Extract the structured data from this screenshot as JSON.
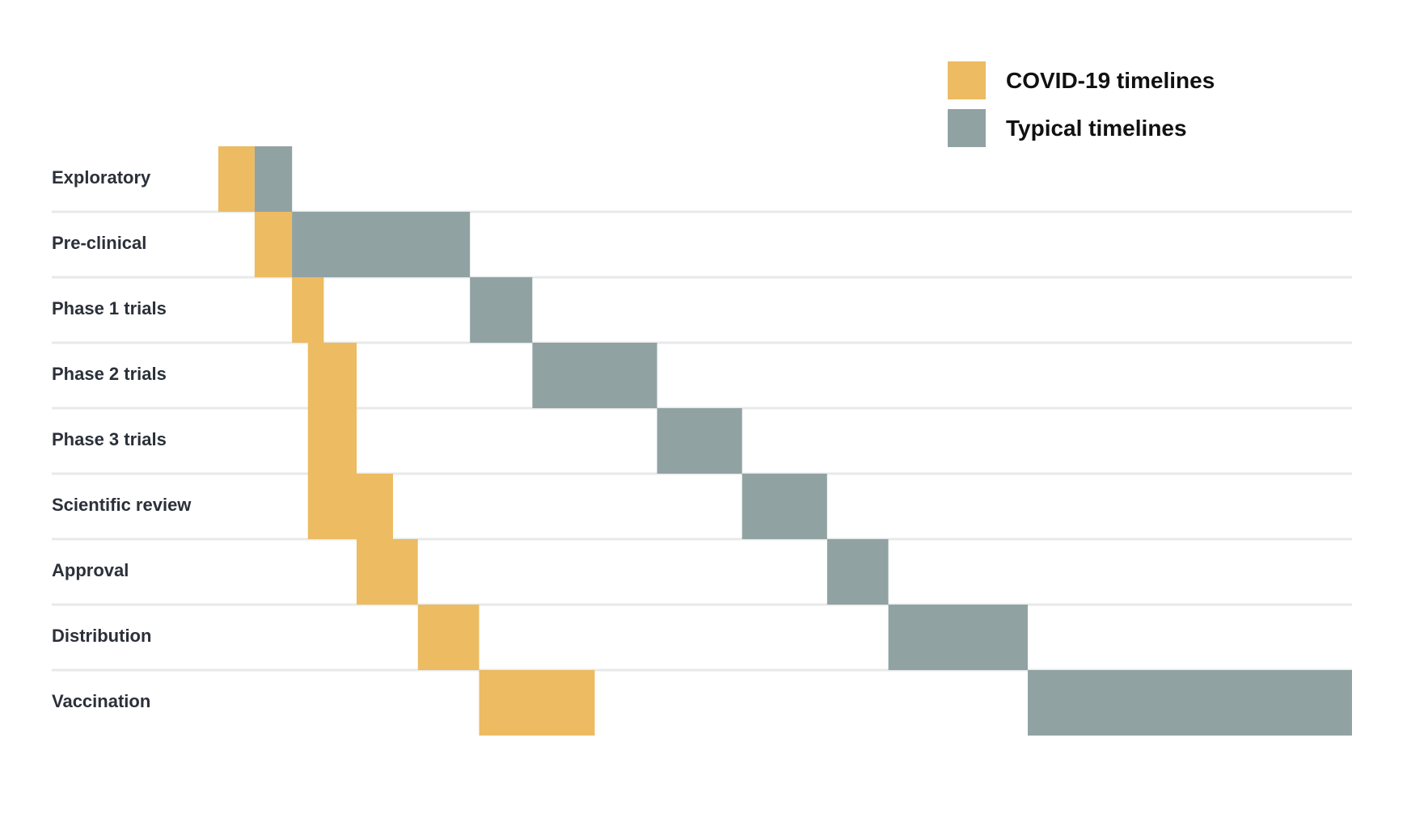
{
  "chart_data": {
    "type": "gantt",
    "title": "",
    "xlabel": "",
    "ylabel": "",
    "x_domain": [
      0,
      1
    ],
    "legend": {
      "placement": "top-right",
      "items": [
        {
          "key": "covid",
          "label": "COVID-19 timelines",
          "color": "#ECBB62"
        },
        {
          "key": "typical",
          "label": "Typical timelines",
          "color": "#91A2A3"
        }
      ]
    },
    "categories": [
      "Exploratory",
      "Pre-clinical",
      "Phase 1 trials",
      "Phase 2 trials",
      "Phase 3 trials",
      "Scientific review",
      "Approval",
      "Distribution",
      "Vaccination"
    ],
    "series": [
      {
        "name": "COVID-19 timelines",
        "key": "covid",
        "segments": [
          {
            "stage": "Exploratory",
            "start": 0.0,
            "end": 0.032
          },
          {
            "stage": "Pre-clinical",
            "start": 0.032,
            "end": 0.065
          },
          {
            "stage": "Phase 1 trials",
            "start": 0.065,
            "end": 0.093
          },
          {
            "stage": "Phase 2 trials",
            "start": 0.079,
            "end": 0.122
          },
          {
            "stage": "Phase 3 trials",
            "start": 0.079,
            "end": 0.122
          },
          {
            "stage": "Scientific review",
            "start": 0.079,
            "end": 0.154
          },
          {
            "stage": "Approval",
            "start": 0.122,
            "end": 0.176
          },
          {
            "stage": "Distribution",
            "start": 0.176,
            "end": 0.23
          },
          {
            "stage": "Vaccination",
            "start": 0.23,
            "end": 0.332
          }
        ]
      },
      {
        "name": "Typical timelines",
        "key": "typical",
        "segments": [
          {
            "stage": "Exploratory",
            "start": 0.032,
            "end": 0.065
          },
          {
            "stage": "Pre-clinical",
            "start": 0.065,
            "end": 0.222
          },
          {
            "stage": "Phase 1 trials",
            "start": 0.222,
            "end": 0.277
          },
          {
            "stage": "Phase 2 trials",
            "start": 0.277,
            "end": 0.387
          },
          {
            "stage": "Phase 3 trials",
            "start": 0.387,
            "end": 0.462
          },
          {
            "stage": "Scientific review",
            "start": 0.462,
            "end": 0.537
          },
          {
            "stage": "Approval",
            "start": 0.537,
            "end": 0.591
          },
          {
            "stage": "Distribution",
            "start": 0.591,
            "end": 0.714
          },
          {
            "stage": "Vaccination",
            "start": 0.714,
            "end": 1.0
          }
        ]
      }
    ]
  }
}
